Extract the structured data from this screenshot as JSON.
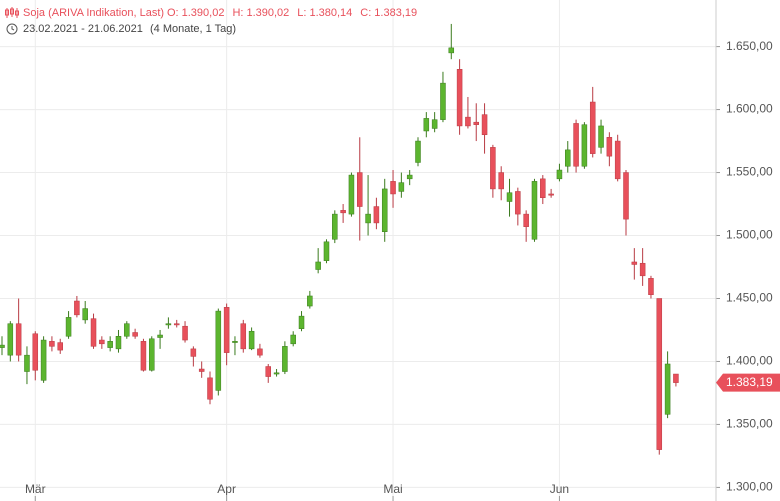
{
  "chart_data": {
    "type": "candlestick",
    "legend": {
      "title": "Soja (ARIVA Indikation, Last)",
      "items": [
        {
          "label": "O:",
          "value": "1.390,02"
        },
        {
          "label": "H:",
          "value": "1.390,02"
        },
        {
          "label": "L:",
          "value": "1.380,14"
        },
        {
          "label": "C:",
          "value": "1.383,19"
        }
      ]
    },
    "range": "23.02.2021 - 21.06.2021",
    "period": "(4 Monate, 1 Tag)",
    "up_color": "#5cb52f",
    "down_color": "#e8505b",
    "grid": true,
    "ylim": [
      1290,
      1687
    ],
    "yticks": [
      {
        "value": 1300,
        "label": "1.300,00"
      },
      {
        "value": 1350,
        "label": "1.350,00"
      },
      {
        "value": 1400,
        "label": "1.400,00"
      },
      {
        "value": 1450,
        "label": "1.450,00"
      },
      {
        "value": 1500,
        "label": "1.500,00"
      },
      {
        "value": 1550,
        "label": "1.550,00"
      },
      {
        "value": 1600,
        "label": "1.600,00"
      },
      {
        "value": 1650,
        "label": "1.650,00"
      }
    ],
    "last_price": {
      "value": 1383.19,
      "label": "1.383,19"
    },
    "categories": [
      null,
      null,
      null,
      null,
      "Mär",
      null,
      null,
      null,
      null,
      null,
      null,
      null,
      null,
      null,
      null,
      null,
      null,
      null,
      null,
      null,
      null,
      null,
      null,
      null,
      null,
      null,
      null,
      "Apr",
      null,
      null,
      null,
      null,
      null,
      null,
      null,
      null,
      null,
      null,
      null,
      null,
      null,
      null,
      null,
      null,
      null,
      null,
      null,
      "Mai",
      null,
      null,
      null,
      null,
      null,
      null,
      null,
      null,
      null,
      null,
      null,
      null,
      null,
      null,
      null,
      null,
      null,
      null,
      null,
      "Jun",
      null,
      null,
      null,
      null,
      null,
      null,
      null,
      null,
      null,
      null,
      null,
      null,
      null,
      null
    ],
    "open": [
      1411,
      1405,
      1430,
      1392,
      1422,
      1385,
      1416,
      1415,
      1420,
      1448,
      1433,
      1434,
      1417,
      1411,
      1410,
      1420,
      1423,
      1416,
      1393,
      1419,
      1429,
      1430,
      1428,
      1410,
      1394,
      1387,
      1377,
      1443,
      1415,
      1430,
      1410,
      1410,
      1396,
      1390,
      1392,
      1414,
      1426,
      1444,
      1473,
      1480,
      1497,
      1520,
      1517,
      1550,
      1510,
      1523,
      1503,
      1543,
      1535,
      1545,
      1558,
      1583,
      1585,
      1592,
      1645,
      1632,
      1594,
      1590,
      1596,
      1570,
      1550,
      1527,
      1535,
      1517,
      1497,
      1545,
      1533,
      1545,
      1555,
      1589,
      1555,
      1606,
      1570,
      1578,
      1575,
      1550,
      1479,
      1478,
      1466,
      1450,
      1358,
      1390.02
    ],
    "high": [
      1420,
      1432,
      1450,
      1412,
      1424,
      1420,
      1420,
      1418,
      1440,
      1452,
      1448,
      1438,
      1420,
      1420,
      1425,
      1432,
      1426,
      1418,
      1420,
      1425,
      1435,
      1433,
      1432,
      1412,
      1400,
      1392,
      1442,
      1446,
      1420,
      1433,
      1427,
      1414,
      1398,
      1394,
      1416,
      1424,
      1440,
      1456,
      1490,
      1497,
      1520,
      1525,
      1550,
      1578,
      1548,
      1530,
      1545,
      1552,
      1550,
      1552,
      1578,
      1598,
      1598,
      1630,
      1668,
      1640,
      1610,
      1605,
      1605,
      1572,
      1555,
      1545,
      1538,
      1520,
      1545,
      1548,
      1537,
      1557,
      1575,
      1592,
      1590,
      1618,
      1592,
      1582,
      1580,
      1552,
      1490,
      1490,
      1468,
      1450,
      1408,
      1390.02
    ],
    "low": [
      1405,
      1400,
      1400,
      1382,
      1385,
      1383,
      1408,
      1406,
      1418,
      1435,
      1430,
      1410,
      1410,
      1408,
      1407,
      1418,
      1418,
      1392,
      1392,
      1410,
      1426,
      1427,
      1415,
      1396,
      1387,
      1366,
      1373,
      1397,
      1405,
      1407,
      1409,
      1403,
      1383,
      1388,
      1390,
      1412,
      1424,
      1442,
      1470,
      1478,
      1494,
      1510,
      1515,
      1496,
      1500,
      1505,
      1495,
      1522,
      1530,
      1540,
      1555,
      1578,
      1582,
      1590,
      1640,
      1580,
      1585,
      1575,
      1565,
      1530,
      1528,
      1515,
      1508,
      1495,
      1495,
      1525,
      1530,
      1543,
      1550,
      1550,
      1553,
      1562,
      1565,
      1555,
      1543,
      1500,
      1465,
      1460,
      1450,
      1326,
      1355,
      1380.14
    ],
    "close": [
      1413,
      1430,
      1405,
      1405,
      1393,
      1417,
      1412,
      1409,
      1435,
      1437,
      1442,
      1412,
      1414,
      1416,
      1420,
      1430,
      1420,
      1393,
      1418,
      1421,
      1430,
      1429,
      1417,
      1404,
      1392,
      1370,
      1440,
      1407,
      1416,
      1410,
      1424,
      1405,
      1388,
      1391,
      1412,
      1421,
      1436,
      1452,
      1479,
      1495,
      1517,
      1518,
      1548,
      1523,
      1517,
      1510,
      1537,
      1533,
      1542,
      1548,
      1575,
      1593,
      1592,
      1621,
      1649,
      1587,
      1587,
      1588,
      1580,
      1537,
      1537,
      1534,
      1517,
      1507,
      1543,
      1530,
      1532,
      1552,
      1568,
      1555,
      1588,
      1565,
      1587,
      1563,
      1545,
      1513,
      1477,
      1468,
      1453,
      1330,
      1398,
      1383.19
    ]
  }
}
